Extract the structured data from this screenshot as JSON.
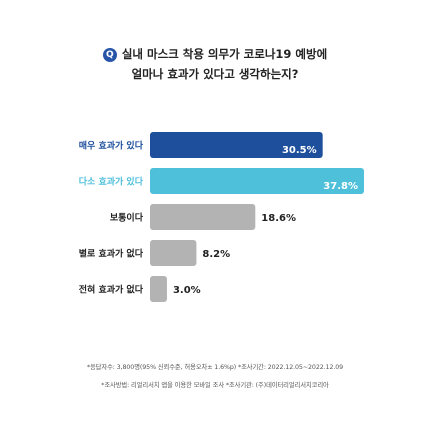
{
  "question": {
    "badge": "Q",
    "line1": "실내 마스크 착용 의무가 코로나19 예방에",
    "line2": "얼마나 효과가 있다고 생각하는지?"
  },
  "chart_data": {
    "type": "bar",
    "orientation": "horizontal",
    "categories": [
      "매우 효과가 있다",
      "다소 효과가 있다",
      "보통이다",
      "별로 효과가 없다",
      "전혀 효과가 없다"
    ],
    "values": [
      30.5,
      37.8,
      18.6,
      8.2,
      3.0
    ],
    "value_labels": [
      "30.5%",
      "37.8%",
      "18.6%",
      "8.2%",
      "3.0%"
    ],
    "unit": "%",
    "xlim": [
      0,
      37.8
    ],
    "grid": false,
    "legend": "none",
    "colors": [
      "#1d4f9c",
      "#4fc0da",
      "#b3b3b3",
      "#b3b3b3",
      "#b3b3b3"
    ],
    "label_colors": [
      "#1d4f9c",
      "#4fc0da",
      "#222222",
      "#222222",
      "#222222"
    ]
  },
  "notes": {
    "line1": "*응답자수: 3,800명(95% 신뢰수준, 허용오차± 1.6%p) *조사기간: 2022.12.05~2022.12.09",
    "line2": "*조사방법: 리얼리서치 앱을 이용한 모바일 조사 *조사기관: (주)데이터리얼리서치코리아"
  }
}
